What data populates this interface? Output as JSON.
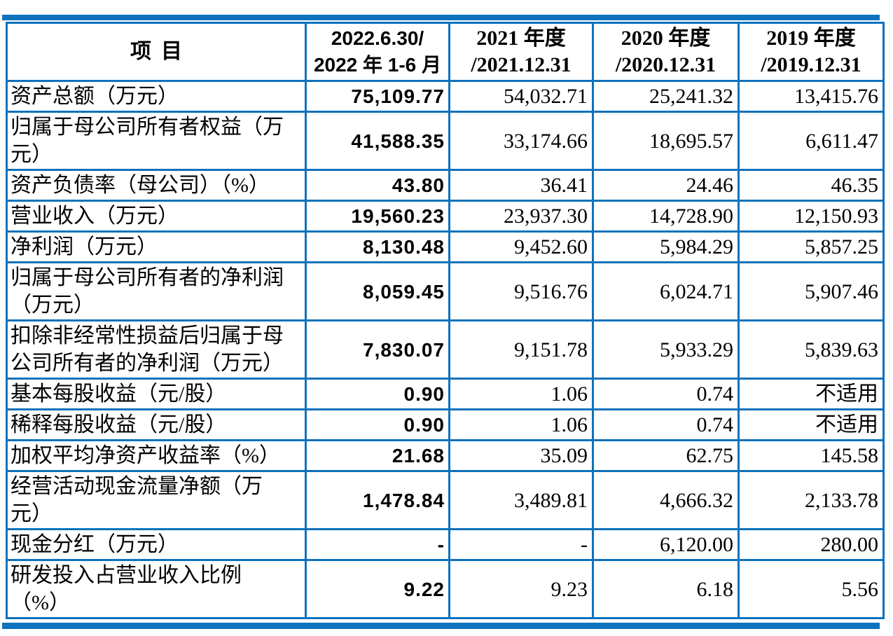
{
  "page": {
    "accent_color": "#0e72bc",
    "background": "#ffffff"
  },
  "table": {
    "columns": [
      "项目",
      "2022.6.30/\n2022 年 1-6 月",
      "2021 年度\n/2021.12.31",
      "2020 年度\n/2020.12.31",
      "2019 年度\n/2019.12.31"
    ],
    "rows": [
      {
        "label": "资产总额（万元）",
        "values": [
          "75,109.77",
          "54,032.71",
          "25,241.32",
          "13,415.76"
        ]
      },
      {
        "label": "归属于母公司所有者权益（万\n元）",
        "values": [
          "41,588.35",
          "33,174.66",
          "18,695.57",
          "6,611.47"
        ]
      },
      {
        "label": "资产负债率（母公司）（%）",
        "values": [
          "43.80",
          "36.41",
          "24.46",
          "46.35"
        ]
      },
      {
        "label": "营业收入（万元）",
        "values": [
          "19,560.23",
          "23,937.30",
          "14,728.90",
          "12,150.93"
        ]
      },
      {
        "label": "净利润（万元）",
        "values": [
          "8,130.48",
          "9,452.60",
          "5,984.29",
          "5,857.25"
        ]
      },
      {
        "label": "归属于母公司所有者的净利润\n（万元）",
        "values": [
          "8,059.45",
          "9,516.76",
          "6,024.71",
          "5,907.46"
        ]
      },
      {
        "label": "扣除非经常性损益后归属于母\n公司所有者的净利润（万元）",
        "values": [
          "7,830.07",
          "9,151.78",
          "5,933.29",
          "5,839.63"
        ]
      },
      {
        "label": "基本每股收益（元/股）",
        "values": [
          "0.90",
          "1.06",
          "0.74",
          "不适用"
        ]
      },
      {
        "label": "稀释每股收益（元/股）",
        "values": [
          "0.90",
          "1.06",
          "0.74",
          "不适用"
        ]
      },
      {
        "label": "加权平均净资产收益率（%）",
        "values": [
          "21.68",
          "35.09",
          "62.75",
          "145.58"
        ]
      },
      {
        "label": "经营活动现金流量净额（万\n元）",
        "values": [
          "1,478.84",
          "3,489.81",
          "4,666.32",
          "2,133.78"
        ]
      },
      {
        "label": "现金分红（万元）",
        "values": [
          "-",
          "-",
          "6,120.00",
          "280.00"
        ]
      },
      {
        "label": "研发投入占营业收入比例\n（%）",
        "values": [
          "9.22",
          "9.23",
          "6.18",
          "5.56"
        ]
      }
    ]
  }
}
